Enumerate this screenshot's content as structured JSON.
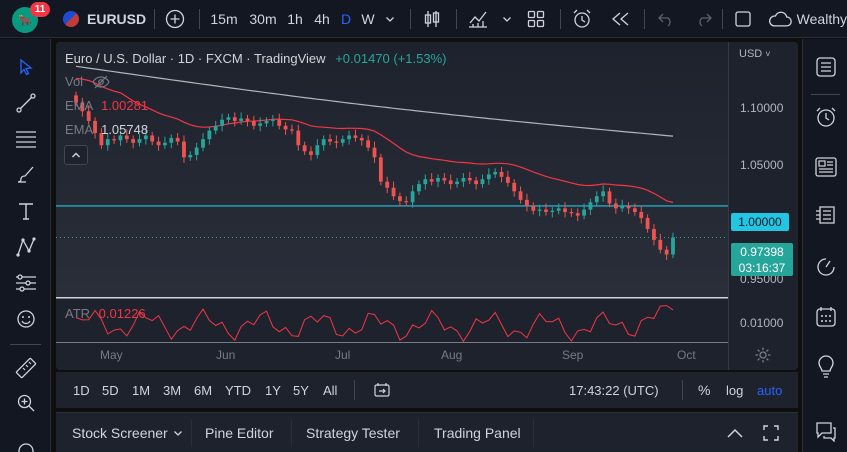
{
  "topbar": {
    "notification_count": "11",
    "symbol": "EURUSD",
    "intervals": [
      "15m",
      "30m",
      "1h",
      "4h",
      "D",
      "W"
    ],
    "active_interval": "D",
    "account": "Wealthy"
  },
  "chart": {
    "title": "Euro / U.S. Dollar · 1D · FXCM · TradingView",
    "change": "+0.01470 (+1.53%)",
    "vol_label": "Vol",
    "ema1_label": "EMA",
    "ema1_value": "1.00281",
    "ema2_label": "EMA",
    "ema2_value": "1.05748",
    "currency": "USD",
    "price_labels": [
      "1.10000",
      "1.05000",
      "0.95000"
    ],
    "level_label": "1.00000",
    "last_price": "0.97398",
    "countdown": "03:16:37",
    "atr_label": "ATR",
    "atr_value": "0.01226",
    "atr_axis_label": "0.01000",
    "months": [
      "May",
      "Jun",
      "Jul",
      "Aug",
      "Sep",
      "Oct"
    ],
    "colors": {
      "up": "#26a69a",
      "down": "#ef5350",
      "ema_fast": "#f23645",
      "ema_slow": "#b2b5be",
      "level": "#22c5e2",
      "atr": "#f23645"
    }
  },
  "chart_data": {
    "type": "candlestick",
    "title": "Euro / U.S. Dollar · 1D · FXCM · TradingView",
    "x_months": [
      "May",
      "Jun",
      "Jul",
      "Aug",
      "Sep",
      "Oct"
    ],
    "y_ticks": [
      1.1,
      1.05,
      1.0,
      0.95
    ],
    "ylim": [
      0.925,
      1.135
    ],
    "last_price": 0.97398,
    "horizontal_level": 1.0,
    "ema_fast_last": 1.00281,
    "ema_slow_last": 1.05748,
    "atr_last": 0.01226,
    "candles_close_approx": [
      1.085,
      1.078,
      1.07,
      1.06,
      1.05,
      1.055,
      1.054,
      1.058,
      1.055,
      1.052,
      1.055,
      1.058,
      1.053,
      1.05,
      1.052,
      1.056,
      1.053,
      1.04,
      1.042,
      1.048,
      1.055,
      1.062,
      1.066,
      1.071,
      1.073,
      1.07,
      1.072,
      1.07,
      1.066,
      1.068,
      1.07,
      1.071,
      1.066,
      1.063,
      1.062,
      1.05,
      1.045,
      1.042,
      1.05,
      1.055,
      1.053,
      1.052,
      1.055,
      1.058,
      1.056,
      1.054,
      1.048,
      1.04,
      1.02,
      1.015,
      1.008,
      1.004,
      1.003,
      1.012,
      1.018,
      1.022,
      1.02,
      1.023,
      1.021,
      1.018,
      1.02,
      1.023,
      1.021,
      1.018,
      1.022,
      1.026,
      1.028,
      1.024,
      1.019,
      1.012,
      1.005,
      1.0,
      0.996,
      0.997,
      0.995,
      0.996,
      0.998,
      0.995,
      0.994,
      0.992,
      0.997,
      1.003,
      1.008,
      1.012,
      1.002,
      0.998,
      1.0,
      0.998,
      0.995,
      0.99,
      0.981,
      0.972,
      0.964,
      0.96,
      0.974
    ]
  },
  "bottombar": {
    "ranges": [
      "1D",
      "5D",
      "1M",
      "3M",
      "6M",
      "YTD",
      "1Y",
      "5Y",
      "All"
    ],
    "time": "17:43:22 (UTC)",
    "percent": "%",
    "log": "log",
    "auto": "auto"
  },
  "panels": {
    "items": [
      "Stock Screener",
      "Pine Editor",
      "Strategy Tester",
      "Trading Panel"
    ]
  }
}
